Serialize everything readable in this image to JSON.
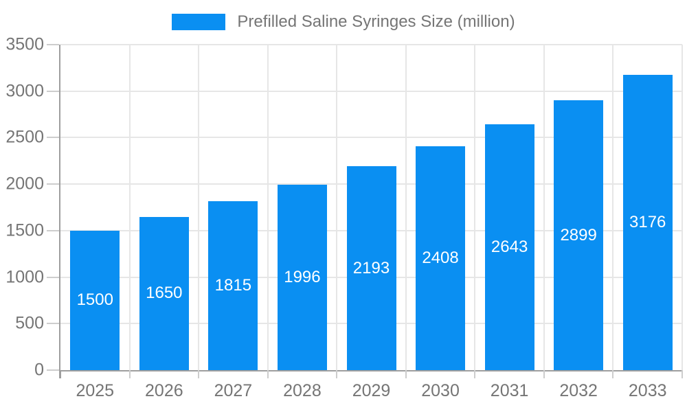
{
  "chart_data": {
    "type": "bar",
    "title": "Prefilled Saline Syringes Size (million)",
    "series": [
      {
        "name": "Prefilled Saline Syringes Size (million)",
        "values": [
          1500,
          1650,
          1815,
          1996,
          2193,
          2408,
          2643,
          2899,
          3176
        ]
      }
    ],
    "categories": [
      "2025",
      "2026",
      "2027",
      "2028",
      "2029",
      "2030",
      "2031",
      "2032",
      "2033"
    ],
    "values": [
      1500,
      1650,
      1815,
      1996,
      2193,
      2408,
      2643,
      2899,
      3176
    ],
    "xlabel": "",
    "ylabel": "",
    "ylim": [
      0,
      3500
    ],
    "ytick_step": 500,
    "yticks": [
      0,
      500,
      1000,
      1500,
      2000,
      2500,
      3000,
      3500
    ],
    "grid": true,
    "legend_position": "top",
    "bar_value_labels_visible": true,
    "colors": {
      "bar": "#0a8ff2",
      "bar_label": "#ffffff",
      "axis_text": "#757575",
      "grid_line": "#e6e6e6",
      "tick_line": "#cdcdcd",
      "axis_line": "#9e9e9e",
      "background": "#ffffff"
    }
  }
}
